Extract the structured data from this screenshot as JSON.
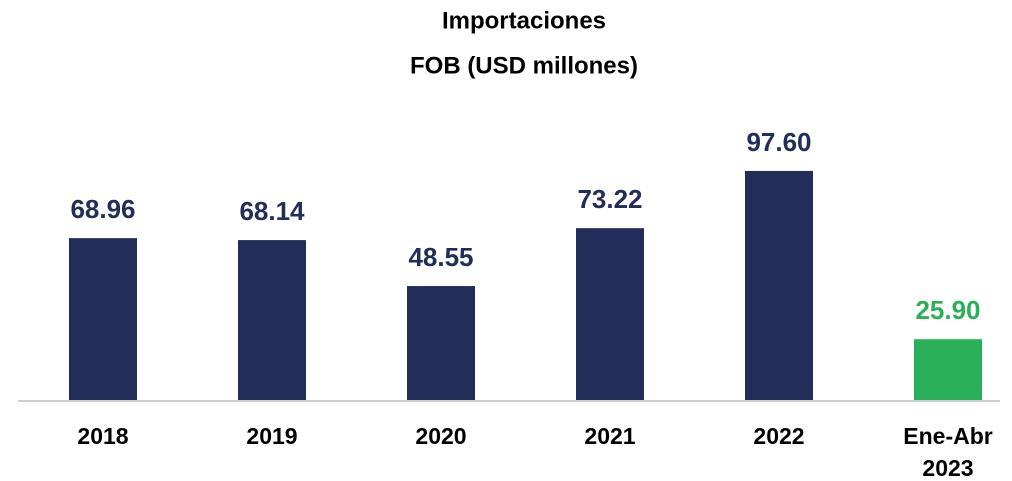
{
  "chart_data": {
    "type": "bar",
    "title": "Importaciones",
    "subtitle": "FOB (USD millones)",
    "categories": [
      "2018",
      "2019",
      "2020",
      "2021",
      "2022",
      "Ene-Abr 2023"
    ],
    "values": [
      68.96,
      68.14,
      48.55,
      73.22,
      97.6,
      25.9
    ],
    "value_labels": [
      "68.96",
      "68.14",
      "48.55",
      "73.22",
      "97.60",
      "25.90"
    ],
    "colors": [
      "#222d5a",
      "#222d5a",
      "#222d5a",
      "#222d5a",
      "#222d5a",
      "#2bb05a"
    ]
  }
}
